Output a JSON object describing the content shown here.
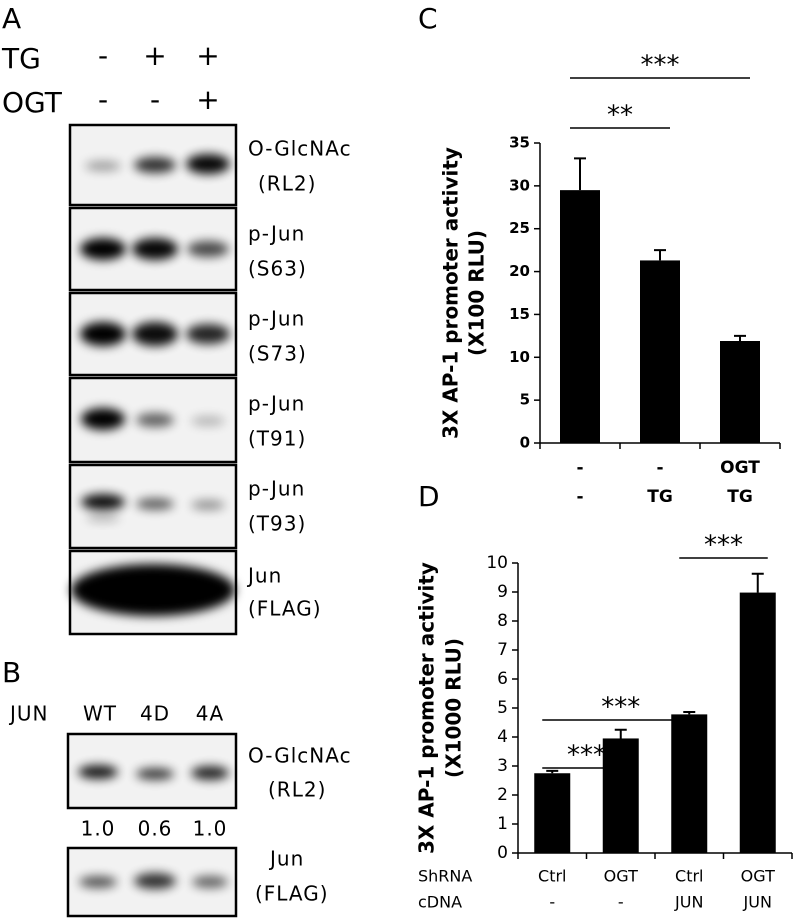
{
  "panel_labels": [
    "A",
    "B",
    "C",
    "D"
  ],
  "blot_a": {
    "conditions": [
      {
        "name": "TG",
        "values": [
          "-",
          "+",
          "+"
        ]
      },
      {
        "name": "OGT",
        "values": [
          "-",
          "-",
          "+"
        ]
      }
    ],
    "blots": [
      {
        "label": [
          "O-GlcNAc",
          "(RL2)"
        ]
      },
      {
        "label": [
          "p-Jun",
          "(S63)"
        ]
      },
      {
        "label": [
          "p-Jun",
          "(S73)"
        ]
      },
      {
        "label": [
          "p-Jun",
          "(T91)"
        ]
      },
      {
        "label": [
          "p-Jun",
          "(T93)"
        ]
      },
      {
        "label": [
          "Jun",
          "(FLAG)"
        ]
      }
    ]
  },
  "blot_b": {
    "name": "JUN",
    "lanes": [
      "WT",
      "4D",
      "4A"
    ],
    "blots": [
      {
        "label": [
          "O-GlcNAc",
          "(RL2)"
        ],
        "quantification": [
          "1.0",
          "0.6",
          "1.0"
        ]
      },
      {
        "label": [
          "Jun",
          "(FLAG)"
        ]
      }
    ]
  },
  "chart_data": [
    {
      "type": "bar",
      "ylabel": [
        "3X AP-1 promoter activity",
        "(X100 RLU)"
      ],
      "categories": [
        [
          "-",
          "-"
        ],
        [
          "-",
          "TG"
        ],
        [
          "OGT",
          "TG"
        ]
      ],
      "series": [
        {
          "color": "#000000",
          "values": [
            29.5,
            21.3,
            11.9
          ],
          "errors": [
            3.7,
            1.2,
            0.6
          ]
        }
      ],
      "ylim": [
        0,
        35
      ],
      "yticks": [
        0,
        5,
        10,
        15,
        20,
        25,
        30,
        35
      ],
      "significance": [
        {
          "text": "***",
          "between": [
            0,
            2
          ]
        },
        {
          "text": "**",
          "between": [
            0,
            1
          ]
        }
      ]
    },
    {
      "type": "bar",
      "ylabel": [
        "3X AP-1 promoter activity",
        "(X1000 RLU)"
      ],
      "category_row_names": [
        "ShRNA",
        "cDNA"
      ],
      "categories": [
        [
          "Ctrl",
          "-"
        ],
        [
          "OGT",
          "-"
        ],
        [
          "Ctrl",
          "JUN"
        ],
        [
          "OGT",
          "JUN"
        ]
      ],
      "series": [
        {
          "color": "#000000",
          "values": [
            2.75,
            3.95,
            4.78,
            8.98
          ],
          "errors": [
            0.08,
            0.3,
            0.08,
            0.65
          ]
        }
      ],
      "ylim": [
        0,
        10
      ],
      "yticks": [
        0,
        1,
        2,
        3,
        4,
        5,
        6,
        7,
        8,
        9,
        10
      ],
      "significance": [
        {
          "text": "***",
          "between": [
            0,
            1
          ]
        },
        {
          "text": "***",
          "between": [
            0,
            2
          ]
        },
        {
          "text": "***",
          "between": [
            2,
            3
          ]
        }
      ]
    }
  ]
}
